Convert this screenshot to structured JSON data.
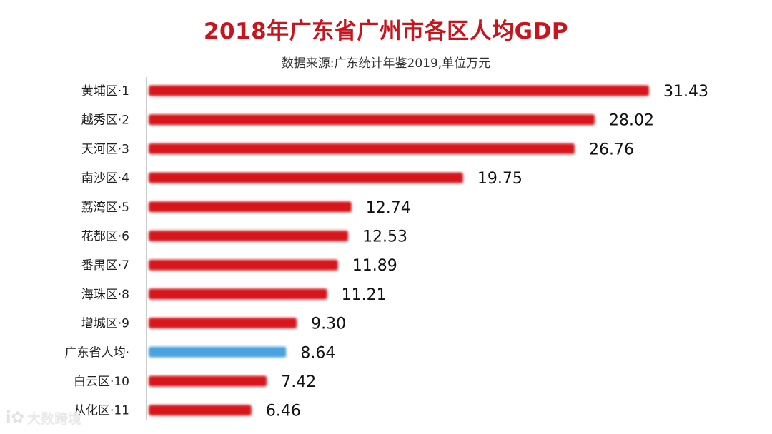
{
  "chart_data": {
    "type": "bar",
    "orientation": "horizontal",
    "title": "2018年广东省广州市各区人均GDP",
    "subtitle": "数据来源:广东统计年鉴2019,单位万元",
    "categories": [
      "黄埔区·1",
      "越秀区·2",
      "天河区·3",
      "南沙区·4",
      "荔湾区·5",
      "花都区·6",
      "番禺区·7",
      "海珠区·8",
      "增城区·9",
      "广东省人均·",
      "白云区·10",
      "从化区·11"
    ],
    "values": [
      31.43,
      28.02,
      26.76,
      19.75,
      12.74,
      12.53,
      11.89,
      11.21,
      9.3,
      8.64,
      7.42,
      6.46
    ],
    "value_labels": [
      "31.43",
      "28.02",
      "26.76",
      "19.75",
      "12.74",
      "12.53",
      "11.89",
      "11.21",
      "9.30",
      "8.64",
      "7.42",
      "6.46"
    ],
    "highlight_index": 9,
    "colors": {
      "bar": "#d7141c",
      "highlight": "#4aa3df",
      "title": "#c8141c",
      "axis": "#888888"
    },
    "xlim": [
      0,
      31.43
    ],
    "grid": false,
    "legend": "none"
  },
  "watermark": {
    "logo": "i✿",
    "text": "大数跨境"
  }
}
